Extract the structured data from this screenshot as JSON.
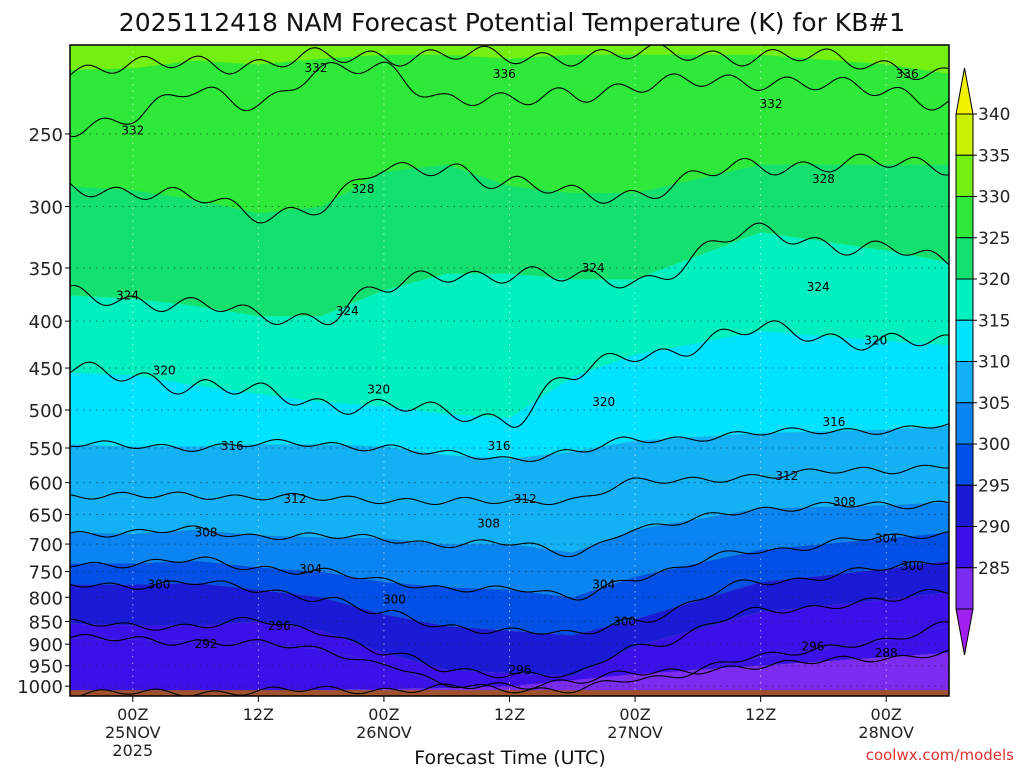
{
  "chart_data": {
    "type": "heatmap",
    "title": "2025112418 NAM Forecast Potential Temperature (K) for KB#1",
    "xlabel": "Forecast Time (UTC)",
    "ylabel": "",
    "watermark": "coolwx.com/models",
    "y_scale": "log",
    "y_inverted": true,
    "ylim": [
      1025,
      200
    ],
    "xlim_hours": [
      -6,
      78
    ],
    "y_ticks": [
      250,
      300,
      350,
      400,
      450,
      500,
      550,
      600,
      650,
      700,
      750,
      800,
      850,
      900,
      950,
      1000
    ],
    "x_ticks": [
      {
        "hour": 0,
        "line1": "00Z",
        "line2": "25NOV",
        "line3": "2025"
      },
      {
        "hour": 12,
        "line1": "12Z",
        "line2": "",
        "line3": ""
      },
      {
        "hour": 24,
        "line1": "00Z",
        "line2": "26NOV",
        "line3": ""
      },
      {
        "hour": 36,
        "line1": "12Z",
        "line2": "",
        "line3": ""
      },
      {
        "hour": 48,
        "line1": "00Z",
        "line2": "27NOV",
        "line3": ""
      },
      {
        "hour": 60,
        "line1": "12Z",
        "line2": "",
        "line3": ""
      },
      {
        "hour": 72,
        "line1": "00Z",
        "line2": "28NOV",
        "line3": ""
      }
    ],
    "grid": true,
    "legend": {
      "position": "right",
      "levels": [
        285,
        290,
        295,
        300,
        305,
        310,
        315,
        320,
        325,
        330,
        335,
        340
      ],
      "labels": [
        "285",
        "290",
        "295",
        "300",
        "305",
        "310",
        "315",
        "320",
        "325",
        "330",
        "335",
        "340"
      ],
      "colors": [
        "#a020f0",
        "#7b2cf0",
        "#3c10e8",
        "#1b1bd6",
        "#0050e6",
        "#0a84f0",
        "#14b0f5",
        "#00e2ff",
        "#00f0c0",
        "#14e070",
        "#2ee83a",
        "#74f010",
        "#c8f000",
        "#f0f000"
      ]
    },
    "terrain_color": "#a0522d",
    "surface_pressure": 1010,
    "isentropes": [
      {
        "theta": 288,
        "p": [
          1020,
          1018,
          1015,
          1013,
          1010,
          1008,
          1005,
          1000,
          985,
          970,
          950,
          930,
          920
        ]
      },
      {
        "theta": 292,
        "p": [
          888,
          890,
          893,
          900,
          912,
          945,
          1000,
          1005,
          1010,
          985,
          930,
          890,
          860
        ]
      },
      {
        "theta": 296,
        "p": [
          855,
          858,
          860,
          850,
          870,
          920,
          960,
          968,
          975,
          905,
          830,
          805,
          790
        ]
      },
      {
        "theta": 300,
        "p": [
          775,
          775,
          772,
          785,
          800,
          835,
          860,
          870,
          880,
          845,
          770,
          745,
          730
        ]
      },
      {
        "theta": 304,
        "p": [
          735,
          735,
          730,
          742,
          750,
          770,
          780,
          785,
          800,
          760,
          710,
          690,
          680
        ]
      },
      {
        "theta": 308,
        "p": [
          680,
          682,
          675,
          685,
          688,
          690,
          700,
          700,
          715,
          675,
          640,
          635,
          630
        ]
      },
      {
        "theta": 312,
        "p": [
          620,
          622,
          618,
          622,
          625,
          625,
          630,
          630,
          625,
          600,
          590,
          580,
          575
        ]
      },
      {
        "theta": 316,
        "p": [
          545,
          548,
          548,
          545,
          545,
          548,
          560,
          565,
          555,
          540,
          530,
          525,
          520
        ]
      },
      {
        "theta": 320,
        "p": [
          455,
          458,
          470,
          480,
          490,
          495,
          505,
          510,
          460,
          435,
          410,
          420,
          425
        ]
      },
      {
        "theta": 324,
        "p": [
          375,
          378,
          385,
          395,
          395,
          370,
          355,
          355,
          360,
          360,
          320,
          335,
          345
        ]
      },
      {
        "theta": 328,
        "p": [
          285,
          288,
          295,
          305,
          300,
          275,
          270,
          285,
          290,
          290,
          270,
          270,
          270
        ]
      },
      {
        "theta": 332,
        "p": [
          245,
          240,
          225,
          230,
          215,
          212,
          228,
          232,
          225,
          222,
          218,
          225,
          230
        ]
      },
      {
        "theta": 336,
        "p": [
          213,
          212,
          208,
          210,
          207,
          205,
          205,
          207,
          205,
          205,
          205,
          210,
          215
        ]
      }
    ],
    "isentrope_hours": [
      -6,
      0,
      6,
      12,
      18,
      24,
      30,
      36,
      42,
      48,
      60,
      72,
      78
    ],
    "contour_labels": [
      {
        "text": "332",
        "hour": 0,
        "p": 248
      },
      {
        "text": "332",
        "hour": 17.5,
        "p": 212
      },
      {
        "text": "336",
        "hour": 35.5,
        "p": 215
      },
      {
        "text": "332",
        "hour": 61,
        "p": 232
      },
      {
        "text": "336",
        "hour": 74,
        "p": 215
      },
      {
        "text": "328",
        "hour": 22,
        "p": 287
      },
      {
        "text": "328",
        "hour": 66,
        "p": 280
      },
      {
        "text": "324",
        "hour": 44,
        "p": 350
      },
      {
        "text": "324",
        "hour": 65.5,
        "p": 367
      },
      {
        "text": "324",
        "hour": -0.5,
        "p": 375
      },
      {
        "text": "324",
        "hour": 20.5,
        "p": 390
      },
      {
        "text": "320",
        "hour": 71,
        "p": 420
      },
      {
        "text": "320",
        "hour": 3,
        "p": 453
      },
      {
        "text": "320",
        "hour": 23.5,
        "p": 475
      },
      {
        "text": "320",
        "hour": 45,
        "p": 490
      },
      {
        "text": "316",
        "hour": 67,
        "p": 515
      },
      {
        "text": "316",
        "hour": 9.5,
        "p": 547
      },
      {
        "text": "316",
        "hour": 35,
        "p": 547
      },
      {
        "text": "312",
        "hour": 62.5,
        "p": 590
      },
      {
        "text": "312",
        "hour": 15.5,
        "p": 625
      },
      {
        "text": "312",
        "hour": 37.5,
        "p": 625
      },
      {
        "text": "308",
        "hour": 68,
        "p": 630
      },
      {
        "text": "308",
        "hour": 7,
        "p": 680
      },
      {
        "text": "308",
        "hour": 34,
        "p": 665
      },
      {
        "text": "304",
        "hour": 72,
        "p": 690
      },
      {
        "text": "304",
        "hour": 17,
        "p": 745
      },
      {
        "text": "304",
        "hour": 45,
        "p": 775
      },
      {
        "text": "300",
        "hour": 74.5,
        "p": 740
      },
      {
        "text": "300",
        "hour": 2.5,
        "p": 775
      },
      {
        "text": "300",
        "hour": 25,
        "p": 805
      },
      {
        "text": "300",
        "hour": 47,
        "p": 850
      },
      {
        "text": "296",
        "hour": 14,
        "p": 860
      },
      {
        "text": "296",
        "hour": 65,
        "p": 905
      },
      {
        "text": "296",
        "hour": 37,
        "p": 960
      },
      {
        "text": "292",
        "hour": 7,
        "p": 900
      },
      {
        "text": "288",
        "hour": 72,
        "p": 920
      }
    ]
  }
}
